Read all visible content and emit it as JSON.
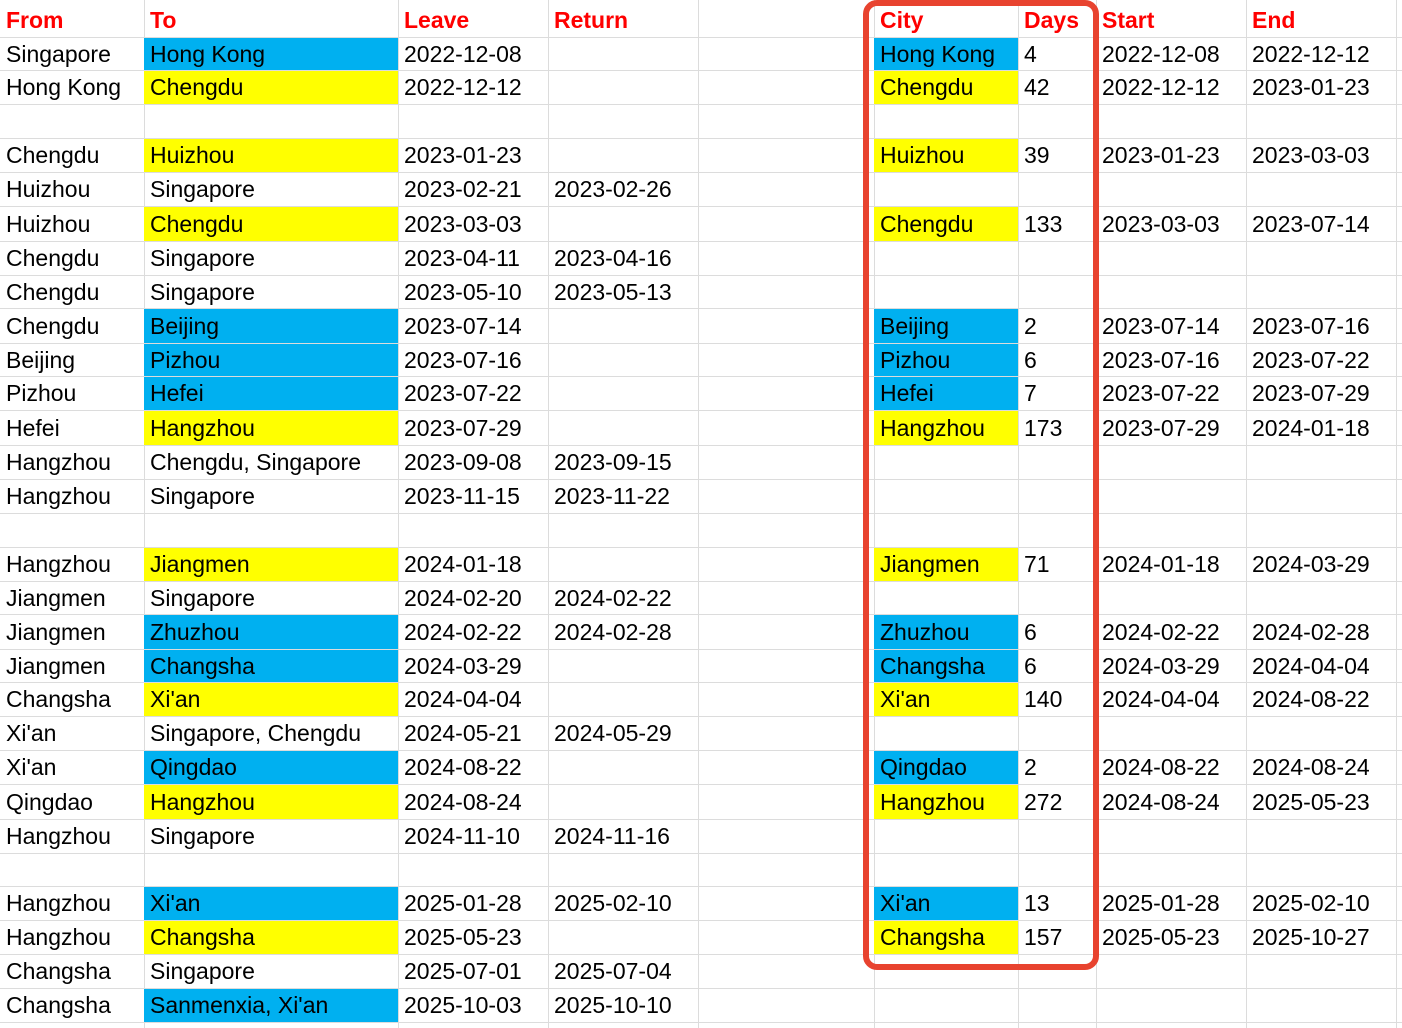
{
  "colors": {
    "header_text": "#ff0000",
    "blue_fill": "#00b0f0",
    "yellow_fill": "#ffff00",
    "highlight_border": "#e8432f",
    "grid": "#dcdcdc"
  },
  "headers": [
    "From",
    "To",
    "Leave",
    "Return",
    "",
    "City",
    "Days",
    "Start",
    "End"
  ],
  "rows": [
    [
      {
        "t": "Singapore"
      },
      {
        "t": "Hong Kong",
        "bg": "blue"
      },
      {
        "t": "2022-12-08"
      },
      {
        "t": ""
      },
      {
        "t": ""
      },
      {
        "t": "Hong Kong",
        "bg": "blue"
      },
      {
        "t": "4"
      },
      {
        "t": "2022-12-08"
      },
      {
        "t": "2022-12-12"
      }
    ],
    [
      {
        "t": "Hong Kong"
      },
      {
        "t": "Chengdu",
        "bg": "yellow"
      },
      {
        "t": "2022-12-12"
      },
      {
        "t": ""
      },
      {
        "t": ""
      },
      {
        "t": "Chengdu",
        "bg": "yellow"
      },
      {
        "t": "42"
      },
      {
        "t": "2022-12-12"
      },
      {
        "t": "2023-01-23"
      }
    ],
    [
      {
        "t": ""
      },
      {
        "t": ""
      },
      {
        "t": ""
      },
      {
        "t": ""
      },
      {
        "t": ""
      },
      {
        "t": ""
      },
      {
        "t": ""
      },
      {
        "t": ""
      },
      {
        "t": ""
      }
    ],
    [
      {
        "t": "Chengdu"
      },
      {
        "t": "Huizhou",
        "bg": "yellow"
      },
      {
        "t": "2023-01-23"
      },
      {
        "t": ""
      },
      {
        "t": ""
      },
      {
        "t": "Huizhou",
        "bg": "yellow"
      },
      {
        "t": "39"
      },
      {
        "t": "2023-01-23"
      },
      {
        "t": "2023-03-03"
      }
    ],
    [
      {
        "t": "Huizhou"
      },
      {
        "t": "Singapore"
      },
      {
        "t": "2023-02-21"
      },
      {
        "t": "2023-02-26"
      },
      {
        "t": ""
      },
      {
        "t": ""
      },
      {
        "t": ""
      },
      {
        "t": ""
      },
      {
        "t": ""
      }
    ],
    [
      {
        "t": "Huizhou"
      },
      {
        "t": "Chengdu",
        "bg": "yellow"
      },
      {
        "t": "2023-03-03"
      },
      {
        "t": ""
      },
      {
        "t": ""
      },
      {
        "t": "Chengdu",
        "bg": "yellow"
      },
      {
        "t": "133"
      },
      {
        "t": "2023-03-03"
      },
      {
        "t": "2023-07-14"
      }
    ],
    [
      {
        "t": "Chengdu"
      },
      {
        "t": "Singapore"
      },
      {
        "t": "2023-04-11"
      },
      {
        "t": "2023-04-16"
      },
      {
        "t": ""
      },
      {
        "t": ""
      },
      {
        "t": ""
      },
      {
        "t": ""
      },
      {
        "t": ""
      }
    ],
    [
      {
        "t": "Chengdu"
      },
      {
        "t": "Singapore"
      },
      {
        "t": "2023-05-10"
      },
      {
        "t": "2023-05-13"
      },
      {
        "t": ""
      },
      {
        "t": ""
      },
      {
        "t": ""
      },
      {
        "t": ""
      },
      {
        "t": ""
      }
    ],
    [
      {
        "t": "Chengdu"
      },
      {
        "t": "Beijing",
        "bg": "blue"
      },
      {
        "t": "2023-07-14"
      },
      {
        "t": ""
      },
      {
        "t": ""
      },
      {
        "t": "Beijing",
        "bg": "blue"
      },
      {
        "t": "2"
      },
      {
        "t": "2023-07-14"
      },
      {
        "t": "2023-07-16"
      }
    ],
    [
      {
        "t": "Beijing"
      },
      {
        "t": "Pizhou",
        "bg": "blue"
      },
      {
        "t": "2023-07-16"
      },
      {
        "t": ""
      },
      {
        "t": ""
      },
      {
        "t": "Pizhou",
        "bg": "blue"
      },
      {
        "t": "6"
      },
      {
        "t": "2023-07-16"
      },
      {
        "t": "2023-07-22"
      }
    ],
    [
      {
        "t": "Pizhou"
      },
      {
        "t": "Hefei",
        "bg": "blue"
      },
      {
        "t": "2023-07-22"
      },
      {
        "t": ""
      },
      {
        "t": ""
      },
      {
        "t": "Hefei",
        "bg": "blue"
      },
      {
        "t": "7"
      },
      {
        "t": "2023-07-22"
      },
      {
        "t": "2023-07-29"
      }
    ],
    [
      {
        "t": "Hefei"
      },
      {
        "t": "Hangzhou",
        "bg": "yellow"
      },
      {
        "t": "2023-07-29"
      },
      {
        "t": ""
      },
      {
        "t": ""
      },
      {
        "t": "Hangzhou",
        "bg": "yellow"
      },
      {
        "t": "173"
      },
      {
        "t": "2023-07-29"
      },
      {
        "t": "2024-01-18"
      }
    ],
    [
      {
        "t": "Hangzhou"
      },
      {
        "t": "Chengdu, Singapore"
      },
      {
        "t": "2023-09-08"
      },
      {
        "t": "2023-09-15"
      },
      {
        "t": ""
      },
      {
        "t": ""
      },
      {
        "t": ""
      },
      {
        "t": ""
      },
      {
        "t": ""
      }
    ],
    [
      {
        "t": "Hangzhou"
      },
      {
        "t": "Singapore"
      },
      {
        "t": "2023-11-15"
      },
      {
        "t": "2023-11-22"
      },
      {
        "t": ""
      },
      {
        "t": ""
      },
      {
        "t": ""
      },
      {
        "t": ""
      },
      {
        "t": ""
      }
    ],
    [
      {
        "t": ""
      },
      {
        "t": ""
      },
      {
        "t": ""
      },
      {
        "t": ""
      },
      {
        "t": ""
      },
      {
        "t": ""
      },
      {
        "t": ""
      },
      {
        "t": ""
      },
      {
        "t": ""
      }
    ],
    [
      {
        "t": "Hangzhou"
      },
      {
        "t": "Jiangmen",
        "bg": "yellow"
      },
      {
        "t": "2024-01-18"
      },
      {
        "t": ""
      },
      {
        "t": ""
      },
      {
        "t": "Jiangmen",
        "bg": "yellow"
      },
      {
        "t": "71"
      },
      {
        "t": "2024-01-18"
      },
      {
        "t": "2024-03-29"
      }
    ],
    [
      {
        "t": "Jiangmen"
      },
      {
        "t": "Singapore"
      },
      {
        "t": "2024-02-20"
      },
      {
        "t": "2024-02-22"
      },
      {
        "t": ""
      },
      {
        "t": ""
      },
      {
        "t": ""
      },
      {
        "t": ""
      },
      {
        "t": ""
      }
    ],
    [
      {
        "t": "Jiangmen"
      },
      {
        "t": "Zhuzhou",
        "bg": "blue"
      },
      {
        "t": "2024-02-22"
      },
      {
        "t": "2024-02-28"
      },
      {
        "t": ""
      },
      {
        "t": "Zhuzhou",
        "bg": "blue"
      },
      {
        "t": "6"
      },
      {
        "t": "2024-02-22"
      },
      {
        "t": "2024-02-28"
      }
    ],
    [
      {
        "t": "Jiangmen"
      },
      {
        "t": "Changsha",
        "bg": "blue"
      },
      {
        "t": "2024-03-29"
      },
      {
        "t": ""
      },
      {
        "t": ""
      },
      {
        "t": "Changsha",
        "bg": "blue"
      },
      {
        "t": "6"
      },
      {
        "t": "2024-03-29"
      },
      {
        "t": "2024-04-04"
      }
    ],
    [
      {
        "t": "Changsha"
      },
      {
        "t": "Xi'an",
        "bg": "yellow"
      },
      {
        "t": "2024-04-04"
      },
      {
        "t": ""
      },
      {
        "t": ""
      },
      {
        "t": "Xi'an",
        "bg": "yellow"
      },
      {
        "t": "140"
      },
      {
        "t": "2024-04-04"
      },
      {
        "t": "2024-08-22"
      }
    ],
    [
      {
        "t": "Xi'an"
      },
      {
        "t": "Singapore, Chengdu"
      },
      {
        "t": "2024-05-21"
      },
      {
        "t": "2024-05-29"
      },
      {
        "t": ""
      },
      {
        "t": ""
      },
      {
        "t": ""
      },
      {
        "t": ""
      },
      {
        "t": ""
      }
    ],
    [
      {
        "t": "Xi'an"
      },
      {
        "t": "Qingdao",
        "bg": "blue"
      },
      {
        "t": "2024-08-22"
      },
      {
        "t": ""
      },
      {
        "t": ""
      },
      {
        "t": "Qingdao",
        "bg": "blue"
      },
      {
        "t": "2"
      },
      {
        "t": "2024-08-22"
      },
      {
        "t": "2024-08-24"
      }
    ],
    [
      {
        "t": "Qingdao"
      },
      {
        "t": "Hangzhou",
        "bg": "yellow"
      },
      {
        "t": "2024-08-24"
      },
      {
        "t": ""
      },
      {
        "t": ""
      },
      {
        "t": "Hangzhou",
        "bg": "yellow"
      },
      {
        "t": "272"
      },
      {
        "t": "2024-08-24"
      },
      {
        "t": "2025-05-23"
      }
    ],
    [
      {
        "t": "Hangzhou"
      },
      {
        "t": "Singapore"
      },
      {
        "t": "2024-11-10"
      },
      {
        "t": "2024-11-16"
      },
      {
        "t": ""
      },
      {
        "t": ""
      },
      {
        "t": ""
      },
      {
        "t": ""
      },
      {
        "t": ""
      }
    ],
    [
      {
        "t": ""
      },
      {
        "t": ""
      },
      {
        "t": ""
      },
      {
        "t": ""
      },
      {
        "t": ""
      },
      {
        "t": ""
      },
      {
        "t": ""
      },
      {
        "t": ""
      },
      {
        "t": ""
      }
    ],
    [
      {
        "t": "Hangzhou"
      },
      {
        "t": "Xi'an",
        "bg": "blue"
      },
      {
        "t": "2025-01-28"
      },
      {
        "t": "2025-02-10"
      },
      {
        "t": ""
      },
      {
        "t": "Xi'an",
        "bg": "blue"
      },
      {
        "t": "13"
      },
      {
        "t": "2025-01-28"
      },
      {
        "t": "2025-02-10"
      }
    ],
    [
      {
        "t": "Hangzhou"
      },
      {
        "t": "Changsha",
        "bg": "yellow"
      },
      {
        "t": "2025-05-23"
      },
      {
        "t": ""
      },
      {
        "t": ""
      },
      {
        "t": "Changsha",
        "bg": "yellow"
      },
      {
        "t": "157"
      },
      {
        "t": "2025-05-23"
      },
      {
        "t": "2025-10-27"
      }
    ],
    [
      {
        "t": "Changsha"
      },
      {
        "t": "Singapore"
      },
      {
        "t": "2025-07-01"
      },
      {
        "t": "2025-07-04"
      },
      {
        "t": ""
      },
      {
        "t": ""
      },
      {
        "t": ""
      },
      {
        "t": ""
      },
      {
        "t": ""
      }
    ],
    [
      {
        "t": "Changsha"
      },
      {
        "t": "Sanmenxia, Xi'an",
        "bg": "blue"
      },
      {
        "t": "2025-10-03"
      },
      {
        "t": "2025-10-10"
      },
      {
        "t": ""
      },
      {
        "t": ""
      },
      {
        "t": ""
      },
      {
        "t": ""
      },
      {
        "t": ""
      }
    ]
  ]
}
